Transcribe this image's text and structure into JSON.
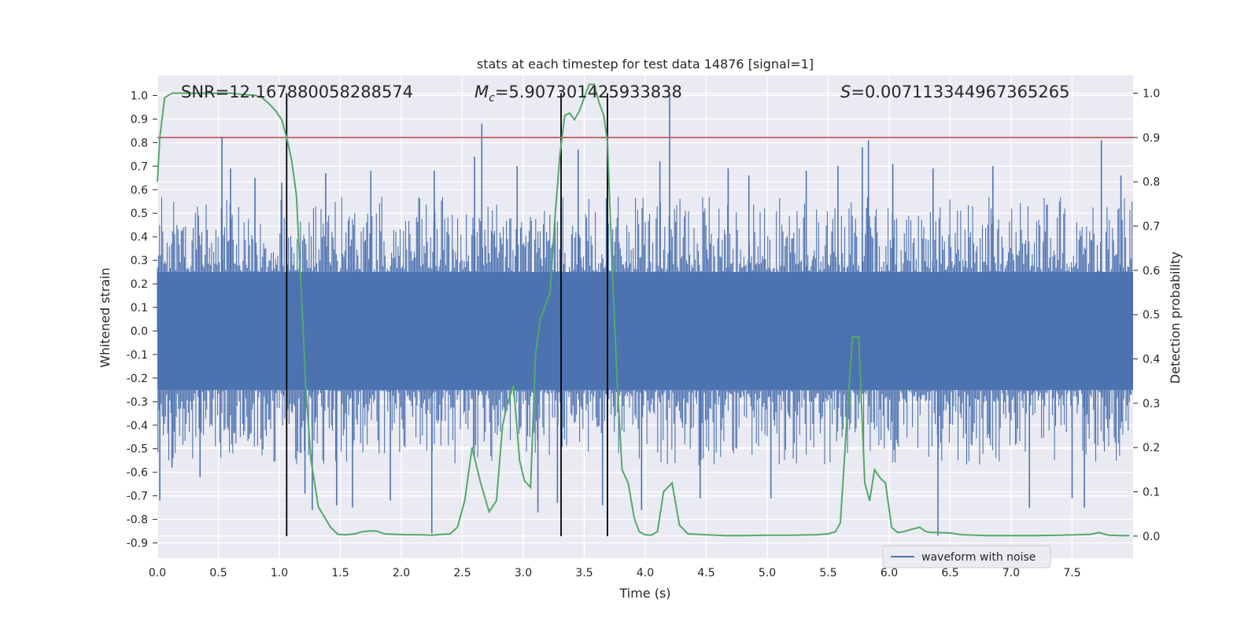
{
  "chart_data": {
    "type": "line",
    "title": "stats at each timestep for test data 14876 [signal=1]",
    "xlabel": "Time (s)",
    "ylabel": "Whitened strain",
    "y2label": "Detection probability",
    "xlim": [
      0.0,
      8.0
    ],
    "ylim": [
      -0.965,
      1.085
    ],
    "y2lim": [
      -0.05,
      1.04
    ],
    "xticks": [
      "0.0",
      "0.5",
      "1.0",
      "1.5",
      "2.0",
      "2.5",
      "3.0",
      "3.5",
      "4.0",
      "4.5",
      "5.0",
      "5.5",
      "6.0",
      "6.5",
      "7.0",
      "7.5"
    ],
    "yticks": [
      "-0.9",
      "-0.8",
      "-0.7",
      "-0.6",
      "-0.5",
      "-0.4",
      "-0.3",
      "-0.2",
      "-0.1",
      "0.0",
      "0.1",
      "0.2",
      "0.3",
      "0.4",
      "0.5",
      "0.6",
      "0.7",
      "0.8",
      "0.9",
      "1.0"
    ],
    "y2ticks": [
      "0.0",
      "0.1",
      "0.2",
      "0.3",
      "0.4",
      "0.5",
      "0.6",
      "0.7",
      "0.8",
      "0.9",
      "1.0"
    ],
    "grid": true,
    "legend": {
      "position": "bottom-right",
      "entries": [
        "waveform with noise"
      ]
    },
    "annotations": {
      "snr": "SNR=12.167880058288574",
      "mc_symbol": "M",
      "mc_sub": "c",
      "mc_value": "=5.907301425933838",
      "s_symbol": "S",
      "s_value": "=0.007113344967365265"
    },
    "threshold_y2": 0.9,
    "vertical_lines_x": [
      1.06,
      3.31,
      3.69
    ],
    "vertical_lines_y2_range": [
      0.0,
      1.0
    ],
    "waveform": {
      "name": "waveform with noise",
      "color": "#4c72b0",
      "core_amplitude": 0.25,
      "typical_peak": 0.45,
      "spikes": [
        [
          0.02,
          -0.72
        ],
        [
          0.12,
          -0.58
        ],
        [
          0.35,
          -0.62
        ],
        [
          0.53,
          0.82
        ],
        [
          0.6,
          0.69
        ],
        [
          0.8,
          0.65
        ],
        [
          1.02,
          0.63
        ],
        [
          1.21,
          -0.69
        ],
        [
          1.27,
          -0.76
        ],
        [
          1.38,
          0.67
        ],
        [
          1.47,
          -0.74
        ],
        [
          1.6,
          -0.75
        ],
        [
          1.75,
          0.68
        ],
        [
          1.91,
          -0.72
        ],
        [
          2.25,
          -0.86
        ],
        [
          2.27,
          0.68
        ],
        [
          2.6,
          0.74
        ],
        [
          2.66,
          0.88
        ],
        [
          2.95,
          0.7
        ],
        [
          3.12,
          -0.77
        ],
        [
          3.28,
          -0.73
        ],
        [
          3.45,
          0.77
        ],
        [
          3.65,
          -0.74
        ],
        [
          3.97,
          -0.76
        ],
        [
          4.12,
          0.72
        ],
        [
          4.2,
          1.0
        ],
        [
          4.45,
          -0.71
        ],
        [
          4.68,
          0.69
        ],
        [
          4.85,
          0.66
        ],
        [
          5.03,
          -0.71
        ],
        [
          5.32,
          0.68
        ],
        [
          5.58,
          0.7
        ],
        [
          5.78,
          0.78
        ],
        [
          5.83,
          0.81
        ],
        [
          6.03,
          0.71
        ],
        [
          6.36,
          0.69
        ],
        [
          6.4,
          -0.87
        ],
        [
          6.85,
          0.7
        ],
        [
          7.15,
          -0.75
        ],
        [
          7.5,
          -0.71
        ],
        [
          7.6,
          -0.75
        ],
        [
          7.74,
          0.81
        ],
        [
          7.9,
          0.66
        ]
      ]
    },
    "series": [
      {
        "name": "",
        "color": "#55a868",
        "axis": "right",
        "x": [
          0.0,
          0.02,
          0.06,
          0.12,
          0.2,
          0.3,
          0.4,
          0.5,
          0.6,
          0.7,
          0.8,
          0.86,
          0.92,
          0.97,
          1.02,
          1.06,
          1.1,
          1.14,
          1.18,
          1.22,
          1.26,
          1.32,
          1.42,
          1.48,
          1.55,
          1.62,
          1.68,
          1.75,
          1.8,
          1.86,
          1.95,
          2.05,
          2.15,
          2.25,
          2.33,
          2.4,
          2.46,
          2.52,
          2.58,
          2.65,
          2.72,
          2.78,
          2.83,
          2.87,
          2.92,
          2.97,
          3.01,
          3.06,
          3.1,
          3.14,
          3.18,
          3.22,
          3.26,
          3.3,
          3.34,
          3.38,
          3.42,
          3.46,
          3.5,
          3.54,
          3.58,
          3.62,
          3.66,
          3.69,
          3.73,
          3.77,
          3.81,
          3.86,
          3.91,
          3.95,
          4.0,
          4.05,
          4.1,
          4.15,
          4.22,
          4.28,
          4.35,
          4.5,
          4.65,
          4.8,
          5.0,
          5.2,
          5.4,
          5.5,
          5.56,
          5.6,
          5.65,
          5.7,
          5.75,
          5.8,
          5.84,
          5.88,
          5.93,
          5.97,
          6.02,
          6.07,
          6.12,
          6.18,
          6.25,
          6.3,
          6.35,
          6.4,
          6.5,
          6.6,
          6.8,
          7.0,
          7.2,
          7.4,
          7.55,
          7.65,
          7.72,
          7.8,
          7.9,
          7.97
        ],
        "values": [
          0.8,
          0.9,
          0.99,
          1.0,
          1.0,
          1.0,
          1.0,
          1.0,
          1.0,
          0.997,
          0.995,
          0.99,
          0.975,
          0.96,
          0.94,
          0.9,
          0.85,
          0.77,
          0.55,
          0.32,
          0.17,
          0.066,
          0.02,
          0.004,
          0.003,
          0.005,
          0.01,
          0.012,
          0.011,
          0.005,
          0.004,
          0.003,
          0.003,
          0.002,
          0.004,
          0.005,
          0.02,
          0.08,
          0.2,
          0.12,
          0.055,
          0.08,
          0.25,
          0.3,
          0.34,
          0.17,
          0.125,
          0.11,
          0.41,
          0.49,
          0.52,
          0.55,
          0.72,
          0.86,
          0.95,
          0.955,
          0.94,
          0.96,
          0.99,
          1.02,
          1.02,
          0.98,
          0.95,
          0.89,
          0.6,
          0.35,
          0.15,
          0.12,
          0.04,
          0.01,
          0.003,
          0.002,
          0.01,
          0.1,
          0.12,
          0.025,
          0.005,
          0.003,
          0.001,
          0.001,
          0.002,
          0.002,
          0.003,
          0.005,
          0.01,
          0.03,
          0.25,
          0.45,
          0.45,
          0.12,
          0.08,
          0.15,
          0.13,
          0.12,
          0.02,
          0.008,
          0.01,
          0.015,
          0.02,
          0.01,
          0.008,
          0.008,
          0.007,
          0.003,
          0.001,
          0.001,
          0.001,
          0.002,
          0.003,
          0.004,
          0.008,
          0.002,
          0.001,
          0.001
        ]
      }
    ]
  }
}
